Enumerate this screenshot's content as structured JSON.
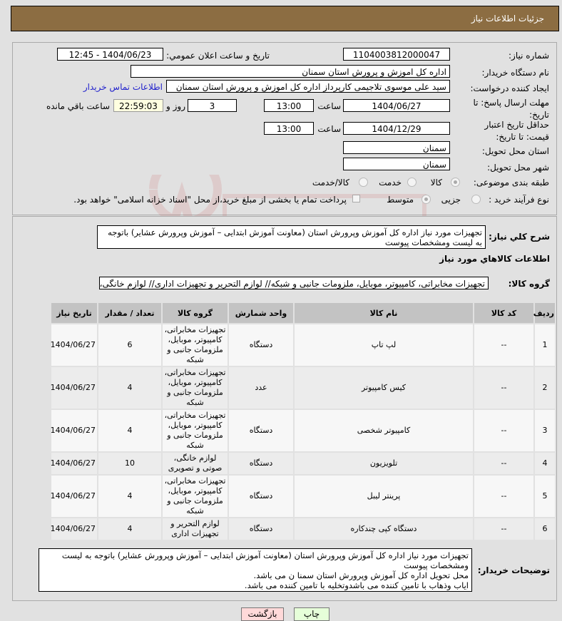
{
  "header": {
    "title": "جزئیات اطلاعات نیاز"
  },
  "watermark": "AriaTender.net",
  "form": {
    "need_number_label": "شماره نیاز:",
    "need_number": "1104003812000047",
    "announce_label": "تاریخ و ساعت اعلان عمومي:",
    "announce_value": "1404/06/23 - 12:45",
    "buyer_org_label": "نام دستگاه خريدار:",
    "buyer_org": "اداره کل اموزش و پرورش استان سمنان",
    "creator_label": "ايجاد کننده درخواست:",
    "creator": "سید علی موسوی تلاجیمی کارپرداز اداره کل اموزش و پرورش استان سمنان",
    "contact_link": "اطلاعات تماس خریدار",
    "deadline_label": "مهلت ارسال پاسخ: تا تاریخ:",
    "deadline_date": "1404/06/27",
    "time_label": "ساعت",
    "deadline_time": "13:00",
    "days": "3",
    "days_label": "روز و",
    "remaining": "22:59:03",
    "remaining_label": "ساعت باقي مانده",
    "validity_label": "حداقل تاریخ اعتبار قیمت: تا تاریخ:",
    "validity_date": "1404/12/29",
    "validity_time": "13:00",
    "province_label": "استان محل تحویل:",
    "province": "سمنان",
    "city_label": "شهر محل تحویل:",
    "city": "سمنان",
    "category_label": "طبقه بندی موضوعی:",
    "category_options": [
      "کالا",
      "خدمت",
      "کالا/خدمت"
    ],
    "category_selected": "کالا",
    "process_label": "نوع فرآیند خرید :",
    "process_options": [
      "جزیی",
      "متوسط"
    ],
    "process_selected": "متوسط",
    "payment_note": "پرداخت تمام یا بخشی از مبلغ خرید،از محل \"اسناد خزانه اسلامی\" خواهد بود."
  },
  "details": {
    "summary_label": "شرح کلي نياز:",
    "summary": "تجهیزات مورد نیاز اداره کل آموزش وپرورش استان (معاونت آموزش ابتدایی – آموزش وپرورش عشایر) باتوجه به لیست ومشخصات پیوست",
    "goods_title": "اطلاعات کالاهاي مورد نياز",
    "group_label": "گروه کالا:",
    "group": "تجهیزات مخابراتی، کامپیوتر، موبایل، ملزومات جانبی و شبکه// لوازم التحریر و تجهیزات اداری// لوازم خانگی، ص",
    "columns": [
      "ردیف",
      "کد کالا",
      "نام کالا",
      "واحد شمارش",
      "گروه کالا",
      "تعداد / مقدار",
      "تاریخ نیاز"
    ],
    "rows": [
      {
        "n": "1",
        "code": "--",
        "name": "لپ تاپ",
        "unit": "دستگاه",
        "group": "تجهیزات مخابراتی، کامپیوتر، موبایل، ملزومات جانبی و شبکه",
        "qty": "6",
        "date": "1404/06/27"
      },
      {
        "n": "2",
        "code": "--",
        "name": "کیس کامپیوتر",
        "unit": "عدد",
        "group": "تجهیزات مخابراتی، کامپیوتر، موبایل، ملزومات جانبی و شبکه",
        "qty": "4",
        "date": "1404/06/27"
      },
      {
        "n": "3",
        "code": "--",
        "name": "کامپیوتر شخصی",
        "unit": "دستگاه",
        "group": "تجهیزات مخابراتی، کامپیوتر، موبایل، ملزومات جانبی و شبکه",
        "qty": "4",
        "date": "1404/06/27"
      },
      {
        "n": "4",
        "code": "--",
        "name": "تلویزیون",
        "unit": "دستگاه",
        "group": "لوازم خانگی، صوتی و تصویری",
        "qty": "10",
        "date": "1404/06/27"
      },
      {
        "n": "5",
        "code": "--",
        "name": "پرینتر لیبل",
        "unit": "دستگاه",
        "group": "تجهیزات مخابراتی، کامپیوتر، موبایل، ملزومات جانبی و شبکه",
        "qty": "4",
        "date": "1404/06/27"
      },
      {
        "n": "6",
        "code": "--",
        "name": "دستگاه کپی چندکاره",
        "unit": "دستگاه",
        "group": "لوازم التحریر و تجهیزات اداری",
        "qty": "4",
        "date": "1404/06/27"
      }
    ],
    "buyer_notes_label": "توضیحات خریدار:",
    "buyer_notes": [
      "تجهیزات مورد نیاز اداره کل آموزش وپرورش استان (معاونت آموزش ابتدایی – آموزش وپرورش عشایر) باتوجه به لیست ومشخصات پیوست",
      "محل تحویل اداره کل آموزش وپرورش استان سمنا ن می باشد.",
      "ایاب وذهاب با تامین کننده می باشدوتخلیه با تامین کننده می باشد."
    ]
  },
  "buttons": {
    "print": "چاپ",
    "back": "بازگشت",
    "print_color": "#e6ffd9",
    "back_color": "#ffd9d9"
  }
}
